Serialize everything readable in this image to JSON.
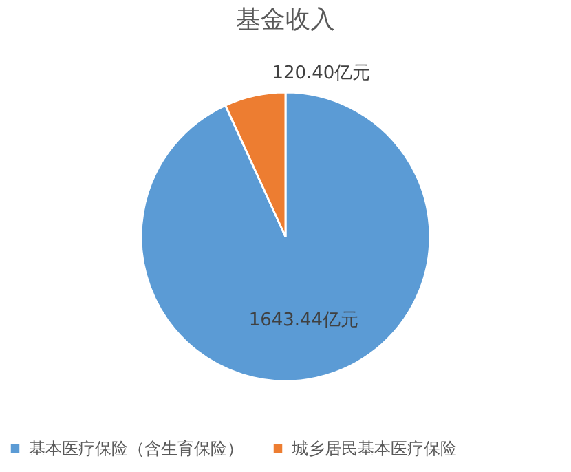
{
  "chart_data": {
    "type": "pie",
    "title": "基金收入",
    "categories": [
      "基本医疗保险（含生育保险）",
      "城乡居民基本医疗保险"
    ],
    "values": [
      1643.44,
      120.4
    ],
    "colors": [
      "#5b9bd5",
      "#ed7d31"
    ],
    "value_labels": [
      "1643.44亿元",
      "120.40亿元"
    ],
    "legend": "bottom"
  }
}
